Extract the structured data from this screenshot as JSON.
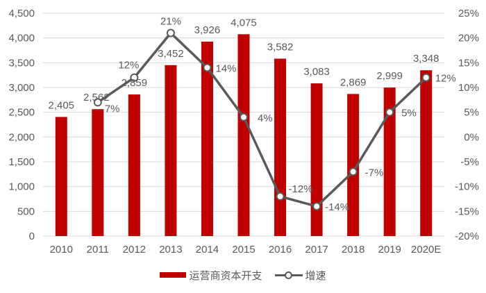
{
  "chart_data": {
    "type": "bar+line",
    "title": "",
    "categories": [
      "2010",
      "2011",
      "2012",
      "2013",
      "2014",
      "2015",
      "2016",
      "2017",
      "2018",
      "2019",
      "2020E"
    ],
    "series": [
      {
        "name": "运营商资本开支",
        "type": "bar",
        "axis": "left",
        "color": "#c00000",
        "values": [
          2405,
          2562,
          2859,
          3452,
          3926,
          4075,
          3582,
          3083,
          2869,
          2999,
          3348
        ],
        "labels": [
          "2,405",
          "2,562",
          "2,859",
          "3,452",
          "3,926",
          "4,075",
          "3,582",
          "3,083",
          "2,869",
          "2,999",
          "3,348"
        ]
      },
      {
        "name": "增速",
        "type": "line",
        "axis": "right",
        "color": "#595959",
        "values": [
          null,
          7,
          12,
          21,
          14,
          4,
          -12,
          -14,
          -7,
          5,
          12
        ],
        "labels": [
          "",
          "7%",
          "12%",
          "21%",
          "14%",
          "4%",
          "-12%",
          "-14%",
          "-7%",
          "5%",
          "12%"
        ]
      }
    ],
    "left_axis": {
      "ylim": [
        0,
        4500
      ],
      "ticks": [
        "0",
        "500",
        "1,000",
        "1,500",
        "2,000",
        "2,500",
        "3,000",
        "3,500",
        "4,000",
        "4,500"
      ]
    },
    "right_axis": {
      "ylim": [
        -20,
        25
      ],
      "ticks": [
        "-20%",
        "-15%",
        "-10%",
        "-5%",
        "0%",
        "5%",
        "10%",
        "15%",
        "20%",
        "25%"
      ]
    },
    "xlabel": "",
    "ylabel": "",
    "grid": true,
    "legend_position": "bottom"
  },
  "legend": {
    "bar_label": "运营商资本开支",
    "line_label": "增速"
  }
}
